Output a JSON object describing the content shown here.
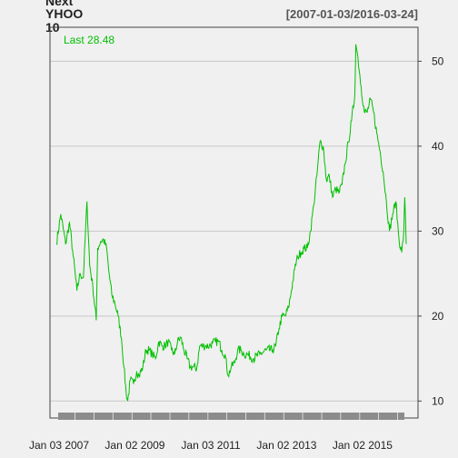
{
  "title_lines": [
    "Next",
    "YHOO",
    "10"
  ],
  "date_range": "[2007-01-03/2016-03-24]",
  "last_label": "Last 28.48",
  "colors": {
    "background": "#f0f0f0",
    "series": "#00c000",
    "grid": "#c8c8c8",
    "axis": "#444444",
    "bar_dark": "#8c8c8c"
  },
  "chart_data": {
    "type": "line",
    "series": [
      {
        "x": [
          "2007-01-03",
          "2007-02-15",
          "2007-04-02",
          "2007-05-10",
          "2007-06-15",
          "2007-07-20",
          "2007-08-20",
          "2007-09-20",
          "2007-10-25",
          "2007-11-20",
          "2007-12-20",
          "2008-01-22",
          "2008-02-05",
          "2008-03-05",
          "2008-04-01",
          "2008-05-01",
          "2008-05-20",
          "2008-06-20",
          "2008-07-20",
          "2008-08-20",
          "2008-09-20",
          "2008-10-15",
          "2008-11-05",
          "2008-11-20",
          "2008-12-15",
          "2009-01-15",
          "2009-02-15",
          "2009-03-09",
          "2009-04-15",
          "2009-05-15",
          "2009-06-15",
          "2009-07-15",
          "2009-08-15",
          "2009-09-15",
          "2009-10-15",
          "2009-11-15",
          "2009-12-15",
          "2010-01-15",
          "2010-02-15",
          "2010-03-15",
          "2010-04-15",
          "2010-05-15",
          "2010-06-15",
          "2010-07-15",
          "2010-08-15",
          "2010-09-15",
          "2010-10-15",
          "2010-11-15",
          "2010-12-15",
          "2011-01-15",
          "2011-02-15",
          "2011-03-15",
          "2011-04-15",
          "2011-05-15",
          "2011-06-15",
          "2011-07-15",
          "2011-08-15",
          "2011-09-15",
          "2011-10-15",
          "2011-11-15",
          "2011-12-15",
          "2012-01-15",
          "2012-03-15",
          "2012-05-15",
          "2012-07-15",
          "2012-09-15",
          "2012-10-15",
          "2012-11-15",
          "2012-12-15",
          "2013-01-15",
          "2013-02-15",
          "2013-03-15",
          "2013-04-15",
          "2013-05-15",
          "2013-06-15",
          "2013-07-15",
          "2013-08-15",
          "2013-09-15",
          "2013-10-15",
          "2013-11-15",
          "2013-12-15",
          "2014-01-15",
          "2014-02-15",
          "2014-03-15",
          "2014-04-15",
          "2014-05-15",
          "2014-06-15",
          "2014-07-15",
          "2014-08-15",
          "2014-09-15",
          "2014-10-15",
          "2014-11-15",
          "2014-11-25",
          "2014-12-15",
          "2015-01-15",
          "2015-02-15",
          "2015-03-15",
          "2015-04-15",
          "2015-05-15",
          "2015-06-15",
          "2015-07-15",
          "2015-08-15",
          "2015-09-15",
          "2015-10-15",
          "2015-11-15",
          "2015-12-15",
          "2016-01-15",
          "2016-02-10",
          "2016-03-01",
          "2016-03-10",
          "2016-03-24"
        ],
        "values": [
          28.5,
          32.0,
          28.5,
          31.0,
          27.0,
          23.0,
          25.0,
          24.5,
          33.5,
          26.0,
          23.5,
          19.5,
          28.0,
          28.8,
          29.0,
          28.0,
          25.5,
          22.5,
          21.5,
          20.0,
          17.5,
          14.0,
          11.0,
          10.0,
          12.5,
          12.0,
          13.5,
          13.0,
          14.0,
          16.0,
          16.0,
          15.5,
          15.0,
          17.0,
          16.5,
          16.5,
          17.0,
          16.0,
          15.5,
          17.0,
          17.5,
          16.0,
          15.0,
          14.0,
          14.0,
          13.8,
          16.5,
          16.5,
          16.5,
          16.5,
          16.8,
          17.0,
          17.0,
          16.0,
          15.5,
          13.0,
          14.0,
          14.5,
          16.0,
          16.0,
          15.5,
          15.5,
          15.0,
          15.5,
          16.0,
          16.0,
          16.5,
          18.5,
          20.0,
          20.0,
          21.0,
          23.0,
          25.5,
          27.0,
          27.5,
          28.0,
          28.0,
          30.0,
          33.0,
          36.5,
          40.5,
          40.0,
          36.0,
          36.5,
          34.0,
          35.0,
          34.5,
          35.5,
          38.0,
          40.5,
          43.0,
          46.0,
          52.0,
          50.5,
          47.0,
          44.0,
          44.0,
          45.5,
          44.0,
          41.5,
          39.5,
          37.0,
          33.5,
          30.0,
          32.0,
          33.5,
          29.0,
          27.5,
          30.0,
          34.0,
          28.48
        ]
      }
    ],
    "ylim": [
      8,
      54
    ],
    "yticks": [
      10,
      20,
      30,
      40,
      50
    ],
    "xtick_labels": [
      "Jan 03 2007",
      "Jan 02 2009",
      "Jan 03 2011",
      "Jan 02 2013",
      "Jan 02 2015"
    ],
    "xtick_dates": [
      "2007-01-03",
      "2009-01-02",
      "2011-01-03",
      "2013-01-02",
      "2015-01-02"
    ],
    "xlim": [
      "2007-01-03",
      "2016-03-24"
    ],
    "grid": "horizontal",
    "yaxis_position": "right"
  }
}
